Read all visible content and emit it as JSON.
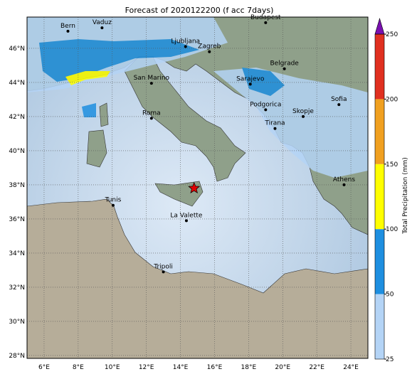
{
  "title": "Forecast of 2020122200 (f acc 7days)",
  "map": {
    "lonlim": [
      5,
      25
    ],
    "latlim": [
      27.83,
      47.83
    ],
    "xticks": [
      {
        "value": 6,
        "label": "6°E"
      },
      {
        "value": 8,
        "label": "8°E"
      },
      {
        "value": 10,
        "label": "10°E"
      },
      {
        "value": 12,
        "label": "12°E"
      },
      {
        "value": 14,
        "label": "14°E"
      },
      {
        "value": 16,
        "label": "16°E"
      },
      {
        "value": 18,
        "label": "18°E"
      },
      {
        "value": 20,
        "label": "20°E"
      },
      {
        "value": 22,
        "label": "22°E"
      },
      {
        "value": 24,
        "label": "24°E"
      }
    ],
    "yticks": [
      {
        "value": 28,
        "label": "28°N"
      },
      {
        "value": 30,
        "label": "30°N"
      },
      {
        "value": 32,
        "label": "32°N"
      },
      {
        "value": 34,
        "label": "34°N"
      },
      {
        "value": 36,
        "label": "36°N"
      },
      {
        "value": 38,
        "label": "38°N"
      },
      {
        "value": 40,
        "label": "40°N"
      },
      {
        "value": 42,
        "label": "42°N"
      },
      {
        "value": 44,
        "label": "44°N"
      },
      {
        "value": 46,
        "label": "46°N"
      }
    ],
    "cities": [
      {
        "name": "Bern",
        "lon": 7.4,
        "lat": 47.0
      },
      {
        "name": "Vaduz",
        "lon": 9.4,
        "lat": 47.2
      },
      {
        "name": "Budapest",
        "lon": 19.0,
        "lat": 47.5
      },
      {
        "name": "Ljubljana",
        "lon": 14.3,
        "lat": 46.1
      },
      {
        "name": "Zagreb",
        "lon": 15.7,
        "lat": 45.8
      },
      {
        "name": "Belgrade",
        "lon": 20.1,
        "lat": 44.8
      },
      {
        "name": "San Marino",
        "lon": 12.3,
        "lat": 43.95
      },
      {
        "name": "Sarajevo",
        "lon": 18.1,
        "lat": 43.9
      },
      {
        "name": "Sofia",
        "lon": 23.3,
        "lat": 42.7
      },
      {
        "name": "Podgorica",
        "lon": 19.0,
        "lat": 42.4
      },
      {
        "name": "Skopje",
        "lon": 21.2,
        "lat": 42.0
      },
      {
        "name": "Roma",
        "lon": 12.3,
        "lat": 41.9
      },
      {
        "name": "Tirana",
        "lon": 19.55,
        "lat": 41.3
      },
      {
        "name": "Athens",
        "lon": 23.6,
        "lat": 38.0
      },
      {
        "name": "Tunis",
        "lon": 10.05,
        "lat": 36.8
      },
      {
        "name": "La Valette",
        "lon": 14.35,
        "lat": 35.9
      },
      {
        "name": "Tripoli",
        "lon": 13.0,
        "lat": 32.9
      }
    ],
    "marker": {
      "lon": 14.8,
      "lat": 37.8,
      "color": "#e00000"
    }
  },
  "colorbar": {
    "label": "Total Precipitation (mm)",
    "ticks": [
      25,
      50,
      100,
      150,
      200,
      250
    ],
    "colors": [
      "#b4d4f6",
      "#1e8fe0",
      "#ffff00",
      "#f0a020",
      "#e03020"
    ],
    "extend_color": "#7a10b0"
  }
}
